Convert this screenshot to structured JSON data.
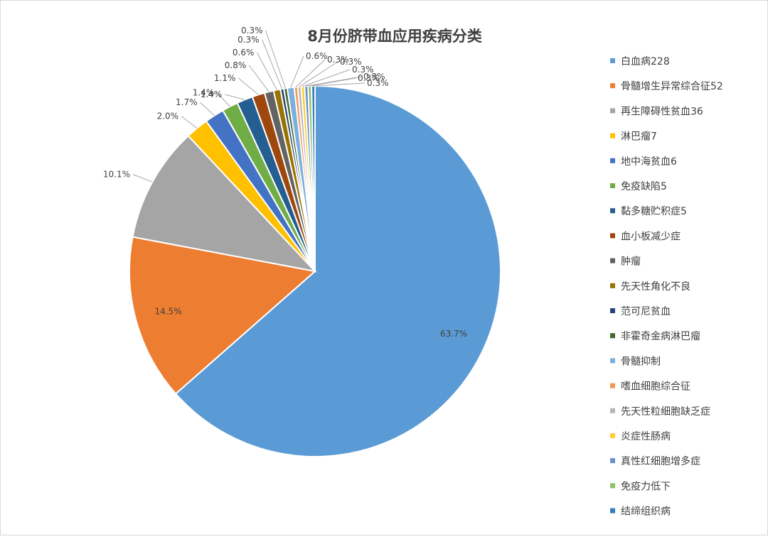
{
  "chart_data": {
    "type": "pie",
    "title": "8月份脐带血应用疾病分类",
    "legend_position": "right",
    "slices": [
      {
        "name": "白血病228",
        "value": 63.7,
        "label": "63.7%",
        "color": "#5B9BD5"
      },
      {
        "name": "骨髓增生异常综合征52",
        "value": 14.5,
        "label": "14.5%",
        "color": "#ED7D31"
      },
      {
        "name": "再生障碍性贫血36",
        "value": 10.1,
        "label": "10.1%",
        "color": "#A5A5A5"
      },
      {
        "name": "淋巴瘤7",
        "value": 2.0,
        "label": "2.0%",
        "color": "#FFC000"
      },
      {
        "name": "地中海贫血6",
        "value": 1.7,
        "label": "1.7%",
        "color": "#4472C4"
      },
      {
        "name": "免疫缺陷5",
        "value": 1.4,
        "label": "1.4%",
        "color": "#70AD47"
      },
      {
        "name": "黏多糖贮积症5",
        "value": 1.4,
        "label": "1.4%",
        "color": "#255E91"
      },
      {
        "name": "血小板减少症",
        "value": 1.1,
        "label": "1.1%",
        "color": "#9E480E"
      },
      {
        "name": "肿瘤",
        "value": 0.8,
        "label": "0.8%",
        "color": "#636363"
      },
      {
        "name": "先天性角化不良",
        "value": 0.6,
        "label": "0.6%",
        "color": "#997300"
      },
      {
        "name": "范可尼贫血",
        "value": 0.3,
        "label": "0.3%",
        "color": "#264478"
      },
      {
        "name": "非霍奇金病淋巴瘤",
        "value": 0.3,
        "label": "0.3%",
        "color": "#43682B"
      },
      {
        "name": "骨髓抑制",
        "value": 0.6,
        "label": "0.6%",
        "color": "#7CAFDD"
      },
      {
        "name": "嗜血细胞综合征",
        "value": 0.3,
        "label": "0.3%",
        "color": "#F1975A"
      },
      {
        "name": "先天性粒细胞缺乏症",
        "value": 0.3,
        "label": "0.3%",
        "color": "#B7B7B7"
      },
      {
        "name": "炎症性肠病",
        "value": 0.3,
        "label": "0.3%",
        "color": "#FFCD33"
      },
      {
        "name": "真性红细胞增多症",
        "value": 0.3,
        "label": "0.3%",
        "color": "#698ED0"
      },
      {
        "name": "免疫力低下",
        "value": 0.3,
        "label": "0.3%",
        "color": "#8CC168"
      },
      {
        "name": "结缔组织病",
        "value": 0.3,
        "label": "0.3%",
        "color": "#327DC2"
      }
    ]
  }
}
